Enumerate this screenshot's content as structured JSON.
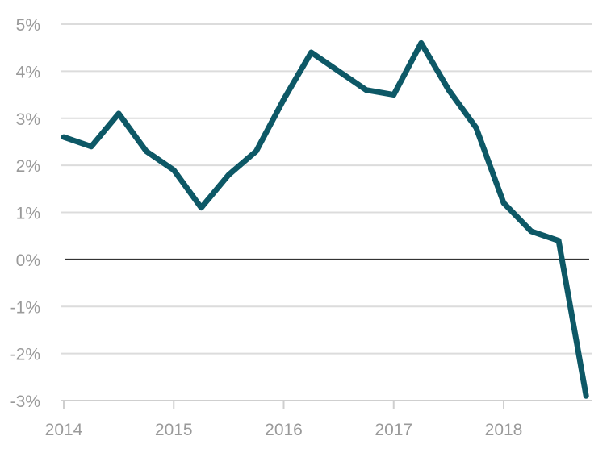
{
  "chart_data": {
    "type": "line",
    "title": "",
    "xlabel": "",
    "ylabel": "",
    "xlim": [
      2014,
      2018.8
    ],
    "ylim": [
      -3,
      5
    ],
    "grid": true,
    "legend": "none",
    "y_ticks": [
      {
        "value": -3,
        "label": "-3%"
      },
      {
        "value": -2,
        "label": "-2%"
      },
      {
        "value": -1,
        "label": "-1%"
      },
      {
        "value": 0,
        "label": "0%"
      },
      {
        "value": 1,
        "label": "1%"
      },
      {
        "value": 2,
        "label": "2%"
      },
      {
        "value": 3,
        "label": "3%"
      },
      {
        "value": 4,
        "label": "4%"
      },
      {
        "value": 5,
        "label": "5%"
      }
    ],
    "x_ticks": [
      {
        "value": 2014,
        "label": "2014"
      },
      {
        "value": 2015,
        "label": "2015"
      },
      {
        "value": 2016,
        "label": "2016"
      },
      {
        "value": 2017,
        "label": "2017"
      },
      {
        "value": 2018,
        "label": "2018"
      }
    ],
    "colors": {
      "series": "#0d5866",
      "grid": "#dcdcdc",
      "zero_line": "#333333",
      "tick_text": "#9a9a9a"
    },
    "series": [
      {
        "x": [
          2014.0,
          2014.25,
          2014.5,
          2014.75,
          2015.0,
          2015.25,
          2015.5,
          2015.75,
          2016.0,
          2016.25,
          2016.5,
          2016.75,
          2017.0,
          2017.25,
          2017.5,
          2017.75,
          2018.0,
          2018.25,
          2018.5,
          2018.75
        ],
        "values": [
          2.6,
          2.4,
          3.1,
          2.3,
          1.9,
          1.1,
          1.8,
          2.3,
          3.4,
          4.4,
          4.0,
          3.6,
          3.5,
          4.6,
          3.6,
          2.8,
          1.2,
          0.6,
          0.4,
          -2.9
        ]
      }
    ]
  }
}
